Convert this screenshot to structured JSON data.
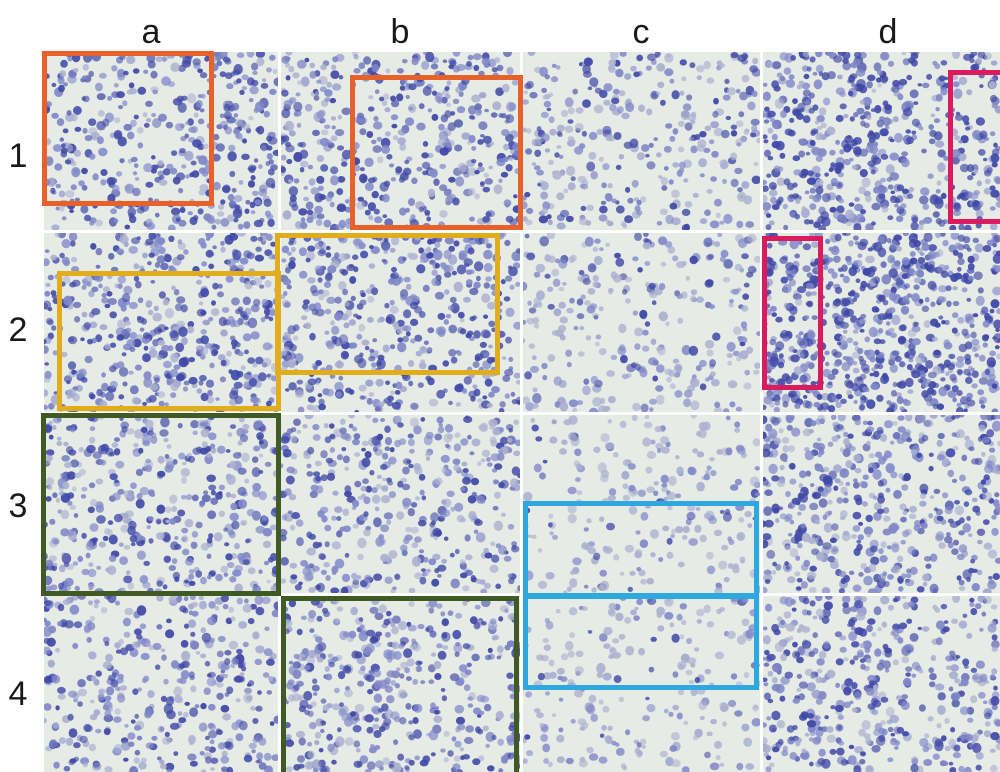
{
  "figure": {
    "column_labels": [
      "a",
      "b",
      "c",
      "d"
    ],
    "row_labels": [
      "1",
      "2",
      "3",
      "4"
    ],
    "stain_colors": {
      "background": "#e6ebe6",
      "cell_dark": "#3f48a6",
      "cell_light": "#8088c8",
      "cell_pale": "#aab0cf"
    },
    "highlight_colors": {
      "orange": "#e8602a",
      "gold": "#e2ad1c",
      "green": "#3f5a22",
      "cyan": "#2ea9e0",
      "magenta": "#dc1a5e"
    }
  }
}
